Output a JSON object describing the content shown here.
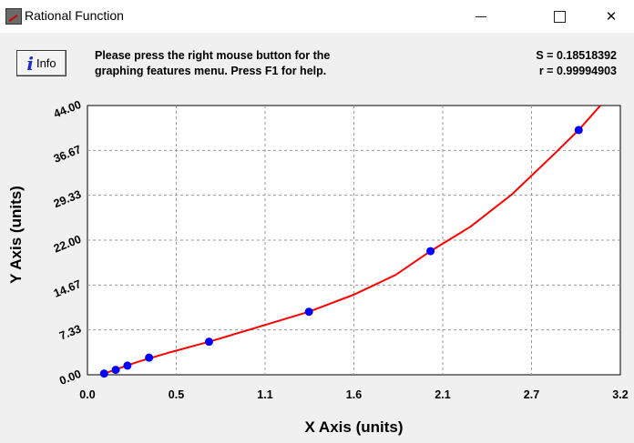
{
  "window": {
    "title": "Rational Function",
    "icon": "rational-function-app-icon",
    "minimize_icon": "minimize-icon",
    "maximize_icon": "maximize-icon",
    "close_icon": "close-icon",
    "close_glyph": "✕"
  },
  "toolbar": {
    "info_icon": "i",
    "info_label": "Info"
  },
  "instructions": {
    "line1": "Please press the right mouse button for the",
    "line2": "graphing features menu.  Press F1 for help."
  },
  "stats": {
    "s_line": "S = 0.18518392",
    "r_line": "r = 0.99994903"
  },
  "colors": {
    "curve": "#ff0000",
    "points": "#0000ff",
    "grid": "#999999",
    "plot_background": "#ffffff"
  },
  "chart_data": {
    "type": "scatter",
    "title": "",
    "xlabel": "X Axis (units)",
    "ylabel": "Y Axis (units)",
    "xlim": [
      0.0,
      3.2
    ],
    "ylim": [
      0.0,
      44.0
    ],
    "x_ticks": [
      "0.0",
      "0.5",
      "1.1",
      "1.6",
      "2.1",
      "2.7",
      "3.2"
    ],
    "y_ticks": [
      "0.00",
      "7.33",
      "14.67",
      "22.00",
      "29.33",
      "36.67",
      "44.00"
    ],
    "grid": true,
    "grid_style": "dashed",
    "legend": "none",
    "series": [
      {
        "kind": "points",
        "x": [
          0.1,
          0.17,
          0.24,
          0.37,
          0.73,
          1.33,
          2.06,
          2.95
        ],
        "y": [
          0.2,
          0.8,
          1.5,
          2.8,
          5.4,
          10.3,
          20.2,
          40.0
        ]
      },
      {
        "kind": "fitted-curve",
        "x": [
          0.1,
          0.3,
          0.5,
          0.73,
          1.0,
          1.33,
          1.6,
          1.85,
          2.06,
          2.3,
          2.55,
          2.8,
          2.95,
          3.1
        ],
        "y": [
          0.2,
          2.1,
          3.7,
          5.4,
          7.6,
          10.3,
          13.1,
          16.3,
          20.2,
          24.2,
          29.5,
          36.0,
          40.0,
          44.6
        ]
      }
    ]
  }
}
